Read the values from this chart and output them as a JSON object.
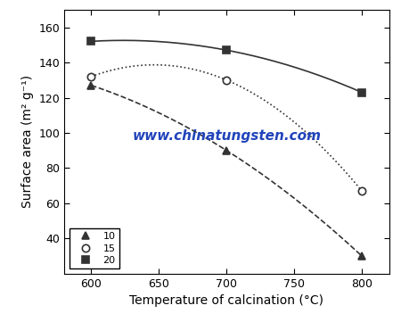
{
  "series": [
    {
      "label": "10",
      "x": [
        600,
        700,
        800
      ],
      "y": [
        127,
        90,
        30
      ],
      "marker": "^",
      "linestyle": "--",
      "color": "#333333"
    },
    {
      "label": "15",
      "x": [
        600,
        700,
        800
      ],
      "y": [
        132,
        130,
        67
      ],
      "marker": "o",
      "linestyle": ":",
      "color": "#333333"
    },
    {
      "label": "20",
      "x": [
        600,
        700,
        800
      ],
      "y": [
        152,
        147,
        123
      ],
      "marker": "s",
      "linestyle": "-",
      "color": "#333333"
    }
  ],
  "xlabel": "Temperature of calcination (°C)",
  "ylabel": "Surface area (m² g⁻¹)",
  "xlim": [
    580,
    820
  ],
  "ylim": [
    20,
    170
  ],
  "xticks": [
    600,
    650,
    700,
    750,
    800
  ],
  "yticks": [
    40,
    60,
    80,
    100,
    120,
    140,
    160
  ],
  "watermark_text": "www.chinatungsten.com",
  "watermark_color": "#2244bb",
  "background_color": "#ffffff",
  "legend_loc": "lower left",
  "markersize": 6,
  "linewidth": 1.2,
  "legend_fontsize": 8,
  "axis_fontsize": 10,
  "tick_fontsize": 9
}
